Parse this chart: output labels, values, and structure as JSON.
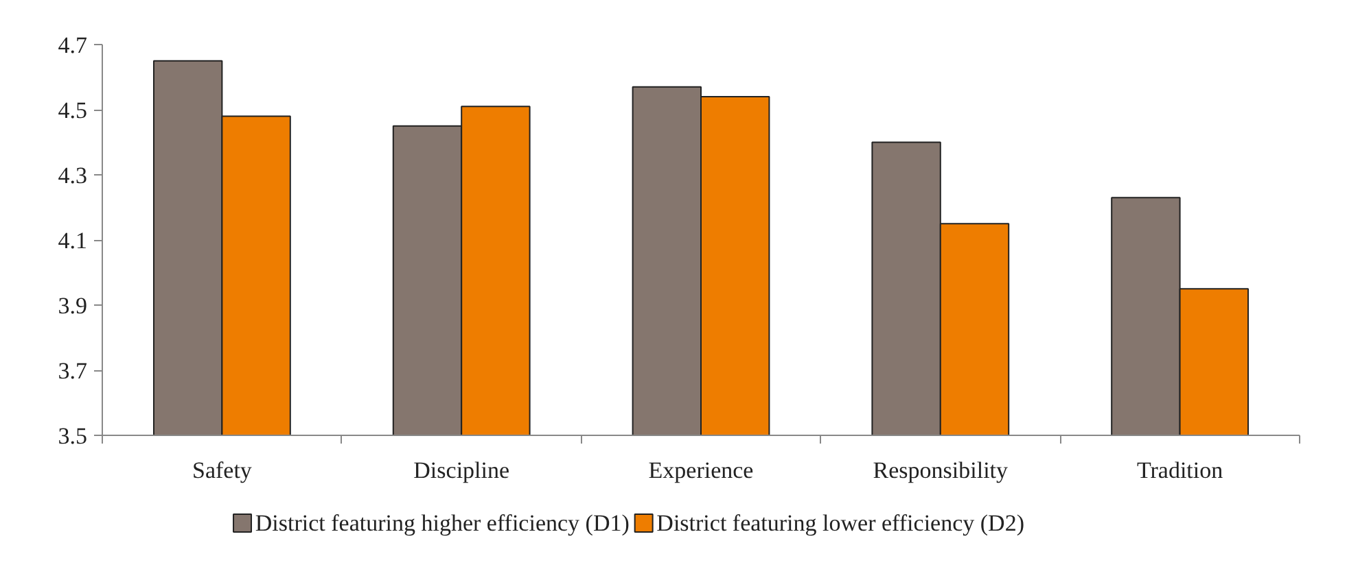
{
  "chart_data": {
    "type": "bar",
    "categories": [
      "Safety",
      "Discipline",
      "Experience",
      "Responsibility",
      "Tradition"
    ],
    "series": [
      {
        "name": "District featuring higher efficiency (D1)",
        "color": "#85766e",
        "values": [
          4.65,
          4.45,
          4.57,
          4.4,
          4.23
        ]
      },
      {
        "name": "District featuring lower efficiency (D2)",
        "color": "#ee7d00",
        "values": [
          4.48,
          4.51,
          4.54,
          4.15,
          3.95
        ]
      }
    ],
    "ylim": [
      3.5,
      4.7
    ],
    "yticks": [
      3.5,
      3.7,
      3.9,
      4.1,
      4.3,
      4.5,
      4.7
    ],
    "grid": false,
    "legend": "bottom"
  }
}
